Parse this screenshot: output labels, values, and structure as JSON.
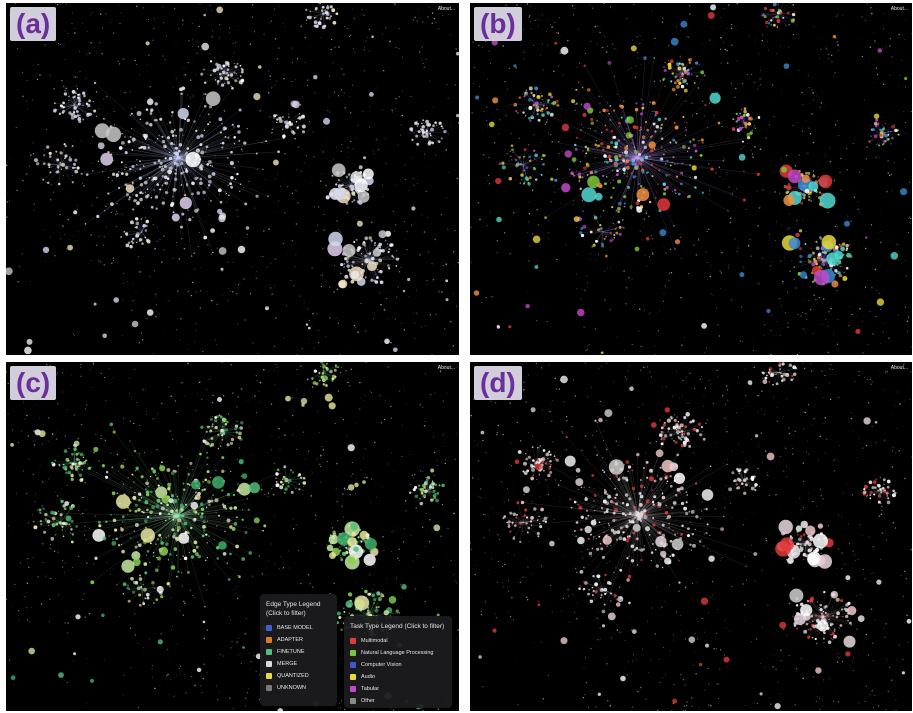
{
  "panels": {
    "a": {
      "label": "(a)",
      "about": "About..."
    },
    "b": {
      "label": "(b)",
      "about": "About..."
    },
    "c": {
      "label": "(c)",
      "about": "About..."
    },
    "d": {
      "label": "(d)",
      "about": "About..."
    }
  },
  "edge_legend": {
    "title": "Edge Type Legend (Click to filter)",
    "items": [
      {
        "label": "BASE MODEL",
        "color": "#3f5fd0"
      },
      {
        "label": "ADAPTER",
        "color": "#e07a2e"
      },
      {
        "label": "FINETUNE",
        "color": "#4fc07a"
      },
      {
        "label": "MERGE",
        "color": "#d8d8d8"
      },
      {
        "label": "QUANTIZED",
        "color": "#e8d84a"
      },
      {
        "label": "UNKNOWN",
        "color": "#7a7a7a"
      }
    ]
  },
  "task_legend": {
    "title": "Task Type Legend (Click to filter)",
    "items": [
      {
        "label": "Multimodal",
        "color": "#e03a3a"
      },
      {
        "label": "Natural Language Processing",
        "color": "#7ac83a"
      },
      {
        "label": "Computer Vision",
        "color": "#3a5ad0"
      },
      {
        "label": "Audio",
        "color": "#e8d83a"
      },
      {
        "label": "Tabular",
        "color": "#c04ac8"
      },
      {
        "label": "Other",
        "color": "#8a8a8a"
      }
    ]
  }
}
